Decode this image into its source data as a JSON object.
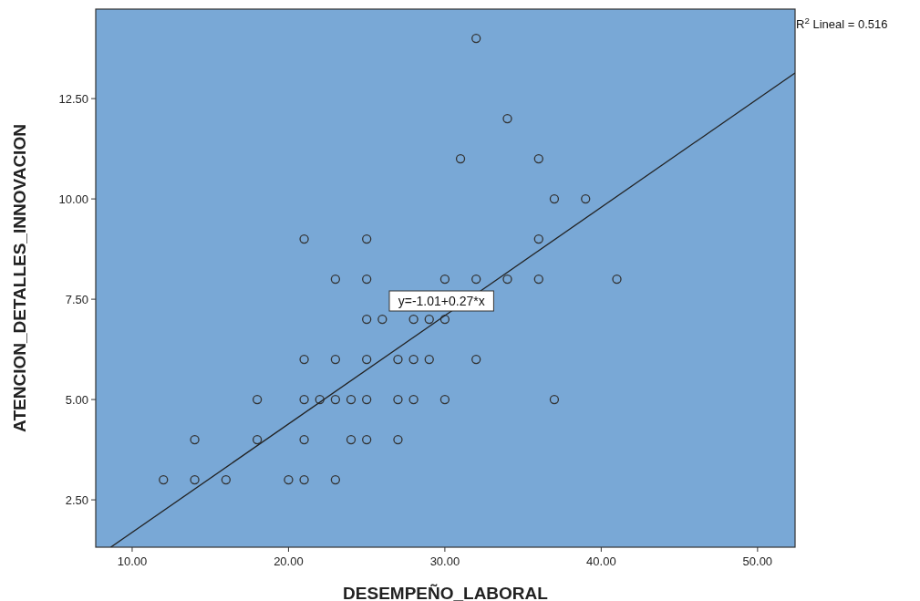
{
  "chart_data": {
    "type": "scatter",
    "xlabel": "DESEMPEÑO_LABORAL",
    "ylabel": "ATENCION_DETALLES_INNOVACION",
    "xlim": [
      7.67,
      52.4
    ],
    "ylim": [
      1.32,
      14.73
    ],
    "xticks": [
      {
        "value": 10,
        "label": "10.00"
      },
      {
        "value": 20,
        "label": "20.00"
      },
      {
        "value": 30,
        "label": "30.00"
      },
      {
        "value": 40,
        "label": "40.00"
      },
      {
        "value": 50,
        "label": "50.00"
      }
    ],
    "yticks": [
      {
        "value": 2.5,
        "label": "2.50"
      },
      {
        "value": 5,
        "label": "5.00"
      },
      {
        "value": 7.5,
        "label": "7.50"
      },
      {
        "value": 10,
        "label": "10.00"
      },
      {
        "value": 12.5,
        "label": "12.50"
      }
    ],
    "grid": false,
    "series": [
      {
        "marker": "circle",
        "color": "#333333",
        "x": [
          12,
          14,
          16,
          20,
          21,
          23,
          14,
          18,
          21,
          24,
          25,
          27,
          18,
          21,
          22,
          23,
          24,
          25,
          27,
          28,
          30,
          37,
          21,
          23,
          25,
          27,
          28,
          29,
          32,
          25,
          26,
          28,
          29,
          30,
          23,
          25,
          30,
          32,
          34,
          36,
          41,
          21,
          25,
          36,
          37,
          39,
          31,
          36,
          34,
          32
        ],
        "values": [
          3,
          3,
          3,
          3,
          3,
          3,
          4,
          4,
          4,
          4,
          4,
          4,
          5,
          5,
          5,
          5,
          5,
          5,
          5,
          5,
          5,
          5,
          6,
          6,
          6,
          6,
          6,
          6,
          6,
          7,
          7,
          7,
          7,
          7,
          8,
          8,
          8,
          8,
          8,
          8,
          8,
          9,
          9,
          9,
          10,
          10,
          11,
          11,
          12,
          14
        ]
      },
      {
        "type": "line",
        "color": "#222222",
        "x": [
          8.63,
          52.4
        ],
        "values": [
          1.32,
          13.14
        ],
        "line_style": "solid",
        "marker": "none"
      }
    ],
    "annotations": [
      "R$^{2}$ Lineal = 0.516",
      "y=-1.01+0.27*x"
    ]
  }
}
